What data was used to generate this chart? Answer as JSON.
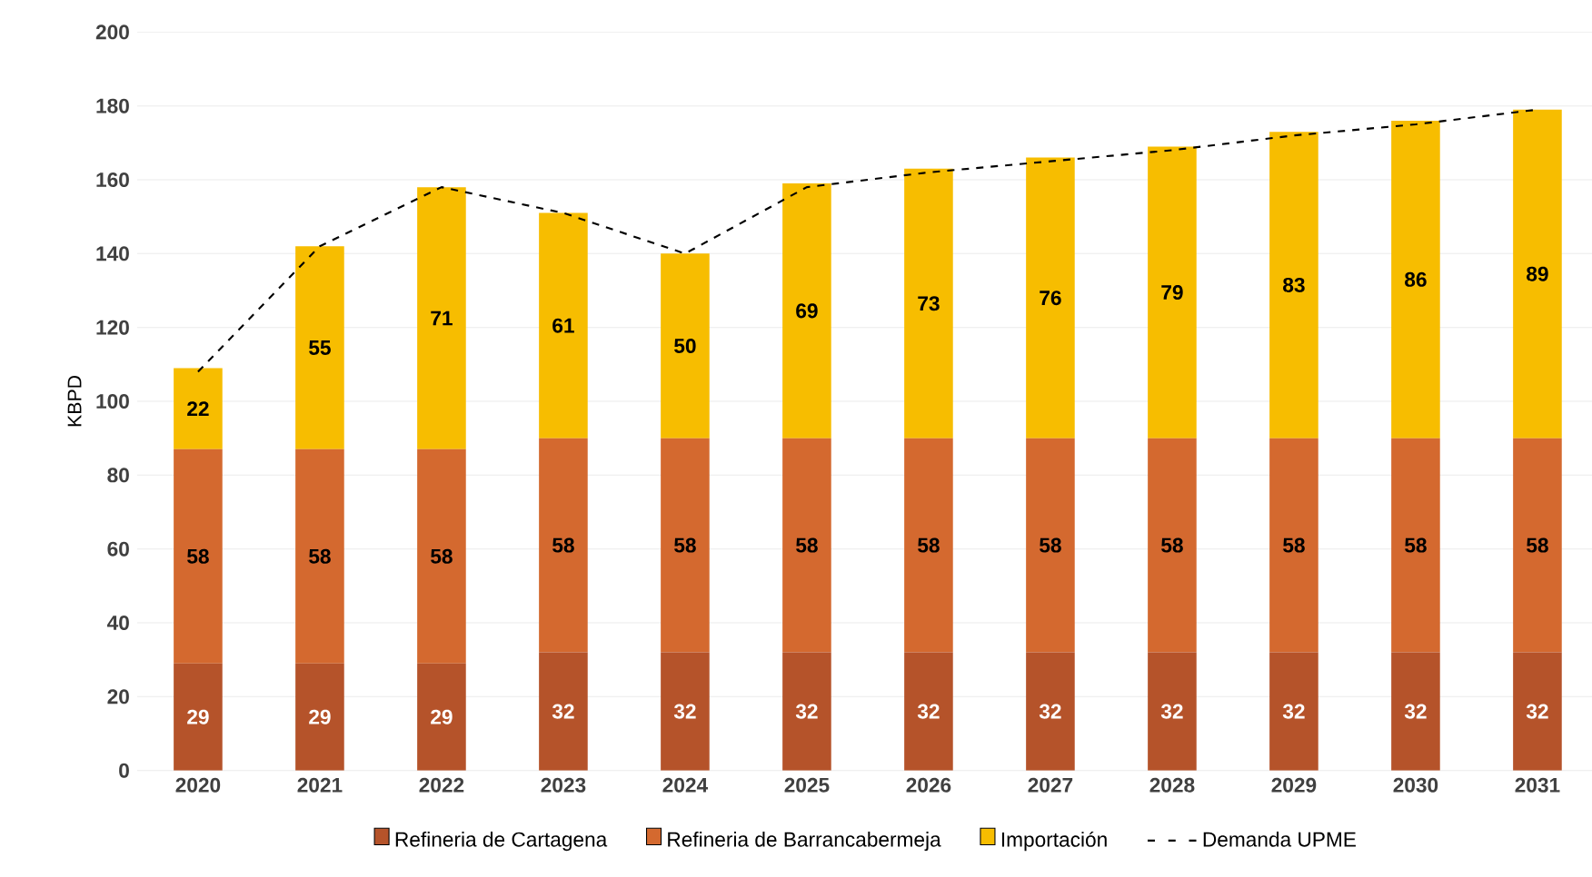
{
  "chart_data": {
    "type": "bar",
    "stacked": true,
    "ylabel": "KBPD",
    "categories": [
      "2020",
      "2021",
      "2022",
      "2023",
      "2024",
      "2025",
      "2026",
      "2027",
      "2028",
      "2029",
      "2030",
      "2031"
    ],
    "ylim": [
      0,
      200
    ],
    "yticks": [
      0,
      20,
      40,
      60,
      80,
      100,
      120,
      140,
      160,
      180,
      200
    ],
    "grid": "y",
    "legend": "bottom",
    "series": [
      {
        "name": "Refineria de Cartagena",
        "color": "#b5532a",
        "values": [
          29,
          29,
          29,
          32,
          32,
          32,
          32,
          32,
          32,
          32,
          32,
          32
        ],
        "value_labels": [
          "29",
          "29",
          "29",
          "32",
          "32",
          "32",
          "32",
          "32",
          "32",
          "32",
          "32",
          "32"
        ]
      },
      {
        "name": "Refineria de Barrancabermeja",
        "color": "#d4692f",
        "values": [
          58,
          58,
          58,
          58,
          58,
          58,
          58,
          58,
          58,
          58,
          58,
          58
        ],
        "value_labels": [
          "58",
          "58",
          "58",
          "58",
          "58",
          "58",
          "58",
          "58",
          "58",
          "58",
          "58",
          "58"
        ]
      },
      {
        "name": "Importación",
        "color": "#f7bd00",
        "values": [
          22,
          55,
          71,
          61,
          50,
          69,
          73,
          76,
          79,
          83,
          86,
          89
        ],
        "value_labels": [
          "22",
          "55",
          "71",
          "61",
          "50",
          "69",
          "73",
          "76",
          "79",
          "83",
          "86",
          "89"
        ]
      },
      {
        "name": "Demanda UPME",
        "type": "line",
        "color": "#000000",
        "line_style": "dashed",
        "marker": "none",
        "values": [
          108,
          142,
          158,
          151,
          140,
          158,
          162,
          165,
          168,
          172,
          175,
          179
        ]
      }
    ]
  }
}
